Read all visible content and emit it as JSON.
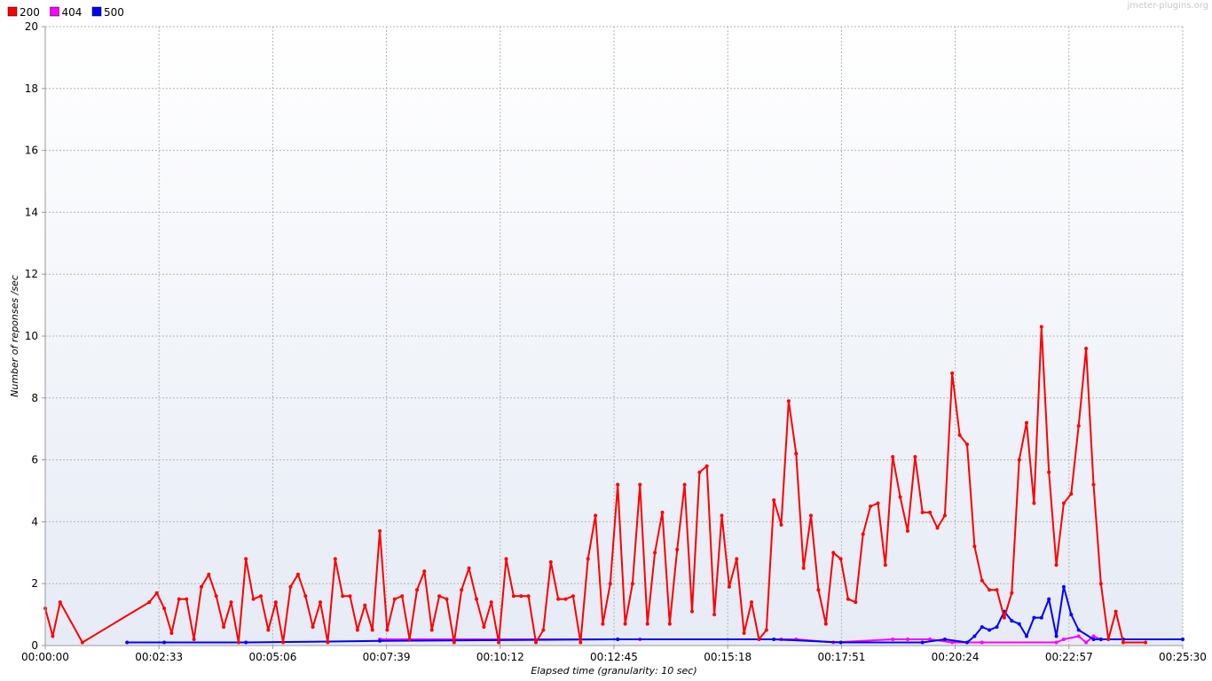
{
  "watermark": "jmeter-plugins.org",
  "chart_data": {
    "type": "line",
    "xlabel": "Elapsed time (granularity: 10 sec)",
    "ylabel": "Number of reponses /sec",
    "ylim": [
      0,
      20
    ],
    "xlim": [
      "00:00:00",
      "00:25:30"
    ],
    "x_tick_labels": [
      "00:00:00",
      "00:02:33",
      "00:05:06",
      "00:07:39",
      "00:10:12",
      "00:12:45",
      "00:15:18",
      "00:17:51",
      "00:20:24",
      "00:22:57",
      "00:25:30"
    ],
    "y_tick_labels": [
      "0",
      "2",
      "4",
      "6",
      "8",
      "10",
      "12",
      "14",
      "16",
      "18",
      "20"
    ],
    "grid": true,
    "legend_position": "top-left",
    "series": [
      {
        "name": "200",
        "color": "#ff0000",
        "points": [
          [
            "00:00:00",
            1.2
          ],
          [
            "00:00:10",
            0.3
          ],
          [
            "00:00:20",
            1.4
          ],
          [
            "00:00:50",
            0.1
          ],
          [
            "00:02:20",
            1.4
          ],
          [
            "00:02:30",
            1.7
          ],
          [
            "00:02:40",
            1.2
          ],
          [
            "00:02:50",
            0.4
          ],
          [
            "00:03:00",
            1.5
          ],
          [
            "00:03:10",
            1.5
          ],
          [
            "00:03:20",
            0.2
          ],
          [
            "00:03:30",
            1.9
          ],
          [
            "00:03:40",
            2.3
          ],
          [
            "00:03:50",
            1.6
          ],
          [
            "00:04:00",
            0.6
          ],
          [
            "00:04:10",
            1.4
          ],
          [
            "00:04:20",
            0.1
          ],
          [
            "00:04:30",
            2.8
          ],
          [
            "00:04:40",
            1.5
          ],
          [
            "00:04:50",
            1.6
          ],
          [
            "00:05:00",
            0.5
          ],
          [
            "00:05:10",
            1.4
          ],
          [
            "00:05:20",
            0.1
          ],
          [
            "00:05:30",
            1.9
          ],
          [
            "00:05:40",
            2.3
          ],
          [
            "00:05:50",
            1.6
          ],
          [
            "00:06:00",
            0.6
          ],
          [
            "00:06:10",
            1.4
          ],
          [
            "00:06:20",
            0.1
          ],
          [
            "00:06:30",
            2.8
          ],
          [
            "00:06:40",
            1.6
          ],
          [
            "00:06:50",
            1.6
          ],
          [
            "00:07:00",
            0.5
          ],
          [
            "00:07:10",
            1.3
          ],
          [
            "00:07:20",
            0.5
          ],
          [
            "00:07:30",
            3.7
          ],
          [
            "00:07:40",
            0.5
          ],
          [
            "00:07:50",
            1.5
          ],
          [
            "00:08:00",
            1.6
          ],
          [
            "00:08:10",
            0.2
          ],
          [
            "00:08:20",
            1.8
          ],
          [
            "00:08:30",
            2.4
          ],
          [
            "00:08:40",
            0.5
          ],
          [
            "00:08:50",
            1.6
          ],
          [
            "00:09:00",
            1.5
          ],
          [
            "00:09:10",
            0.1
          ],
          [
            "00:09:20",
            1.8
          ],
          [
            "00:09:30",
            2.5
          ],
          [
            "00:09:40",
            1.5
          ],
          [
            "00:09:50",
            0.6
          ],
          [
            "00:10:00",
            1.4
          ],
          [
            "00:10:10",
            0.1
          ],
          [
            "00:10:20",
            2.8
          ],
          [
            "00:10:30",
            1.6
          ],
          [
            "00:10:40",
            1.6
          ],
          [
            "00:10:50",
            1.6
          ],
          [
            "00:11:00",
            0.1
          ],
          [
            "00:11:10",
            0.5
          ],
          [
            "00:11:20",
            2.7
          ],
          [
            "00:11:30",
            1.5
          ],
          [
            "00:11:40",
            1.5
          ],
          [
            "00:11:50",
            1.6
          ],
          [
            "00:12:00",
            0.1
          ],
          [
            "00:12:10",
            2.8
          ],
          [
            "00:12:20",
            4.2
          ],
          [
            "00:12:30",
            0.7
          ],
          [
            "00:12:40",
            2.0
          ],
          [
            "00:12:50",
            5.2
          ],
          [
            "00:13:00",
            0.7
          ],
          [
            "00:13:10",
            2.0
          ],
          [
            "00:13:20",
            5.2
          ],
          [
            "00:13:30",
            0.7
          ],
          [
            "00:13:40",
            3.0
          ],
          [
            "00:13:50",
            4.3
          ],
          [
            "00:14:00",
            0.7
          ],
          [
            "00:14:10",
            3.1
          ],
          [
            "00:14:20",
            5.2
          ],
          [
            "00:14:30",
            1.1
          ],
          [
            "00:14:40",
            5.6
          ],
          [
            "00:14:50",
            5.8
          ],
          [
            "00:15:00",
            1.0
          ],
          [
            "00:15:10",
            4.2
          ],
          [
            "00:15:20",
            1.9
          ],
          [
            "00:15:30",
            2.8
          ],
          [
            "00:15:40",
            0.4
          ],
          [
            "00:15:50",
            1.4
          ],
          [
            "00:16:00",
            0.2
          ],
          [
            "00:16:10",
            0.5
          ],
          [
            "00:16:20",
            4.7
          ],
          [
            "00:16:30",
            3.9
          ],
          [
            "00:16:40",
            7.9
          ],
          [
            "00:16:50",
            6.2
          ],
          [
            "00:17:00",
            2.5
          ],
          [
            "00:17:10",
            4.2
          ],
          [
            "00:17:20",
            1.8
          ],
          [
            "00:17:30",
            0.7
          ],
          [
            "00:17:40",
            3.0
          ],
          [
            "00:17:50",
            2.8
          ],
          [
            "00:18:00",
            1.5
          ],
          [
            "00:18:10",
            1.4
          ],
          [
            "00:18:20",
            3.6
          ],
          [
            "00:18:30",
            4.5
          ],
          [
            "00:18:40",
            4.6
          ],
          [
            "00:18:50",
            2.6
          ],
          [
            "00:19:00",
            6.1
          ],
          [
            "00:19:10",
            4.8
          ],
          [
            "00:19:20",
            3.7
          ],
          [
            "00:19:30",
            6.1
          ],
          [
            "00:19:40",
            4.3
          ],
          [
            "00:19:50",
            4.3
          ],
          [
            "00:20:00",
            3.8
          ],
          [
            "00:20:10",
            4.2
          ],
          [
            "00:20:20",
            8.8
          ],
          [
            "00:20:30",
            6.8
          ],
          [
            "00:20:40",
            6.5
          ],
          [
            "00:20:50",
            3.2
          ],
          [
            "00:21:00",
            2.1
          ],
          [
            "00:21:10",
            1.8
          ],
          [
            "00:21:20",
            1.8
          ],
          [
            "00:21:30",
            0.9
          ],
          [
            "00:21:40",
            1.7
          ],
          [
            "00:21:50",
            6.0
          ],
          [
            "00:22:00",
            7.2
          ],
          [
            "00:22:10",
            4.6
          ],
          [
            "00:22:20",
            10.3
          ],
          [
            "00:22:30",
            5.6
          ],
          [
            "00:22:40",
            2.6
          ],
          [
            "00:22:50",
            4.6
          ],
          [
            "00:23:00",
            4.9
          ],
          [
            "00:23:10",
            7.1
          ],
          [
            "00:23:20",
            9.6
          ],
          [
            "00:23:30",
            5.2
          ],
          [
            "00:23:40",
            2.0
          ],
          [
            "00:23:50",
            0.2
          ],
          [
            "00:24:00",
            1.1
          ],
          [
            "00:24:10",
            0.1
          ],
          [
            "00:24:40",
            0.1
          ]
        ]
      },
      {
        "name": "404",
        "color": "#ff00ff",
        "points": [
          [
            "00:07:30",
            0.2
          ],
          [
            "00:12:50",
            0.2
          ],
          [
            "00:13:20",
            0.2
          ],
          [
            "00:16:30",
            0.2
          ],
          [
            "00:16:50",
            0.2
          ],
          [
            "00:17:40",
            0.1
          ],
          [
            "00:19:00",
            0.2
          ],
          [
            "00:19:20",
            0.2
          ],
          [
            "00:19:50",
            0.2
          ],
          [
            "00:20:20",
            0.1
          ],
          [
            "00:21:00",
            0.1
          ],
          [
            "00:22:40",
            0.1
          ],
          [
            "00:22:50",
            0.2
          ],
          [
            "00:23:10",
            0.3
          ],
          [
            "00:23:20",
            0.1
          ],
          [
            "00:23:30",
            0.3
          ],
          [
            "00:23:40",
            0.2
          ]
        ]
      },
      {
        "name": "500",
        "color": "#0000ff",
        "points": [
          [
            "00:01:50",
            0.1
          ],
          [
            "00:02:40",
            0.1
          ],
          [
            "00:04:30",
            0.1
          ],
          [
            "00:07:30",
            0.15
          ],
          [
            "00:12:50",
            0.2
          ],
          [
            "00:16:20",
            0.2
          ],
          [
            "00:17:50",
            0.1
          ],
          [
            "00:19:40",
            0.1
          ],
          [
            "00:20:10",
            0.2
          ],
          [
            "00:20:40",
            0.1
          ],
          [
            "00:20:50",
            0.3
          ],
          [
            "00:21:00",
            0.6
          ],
          [
            "00:21:10",
            0.5
          ],
          [
            "00:21:20",
            0.6
          ],
          [
            "00:21:30",
            1.1
          ],
          [
            "00:21:40",
            0.8
          ],
          [
            "00:21:50",
            0.7
          ],
          [
            "00:22:00",
            0.3
          ],
          [
            "00:22:10",
            0.9
          ],
          [
            "00:22:20",
            0.9
          ],
          [
            "00:22:30",
            1.5
          ],
          [
            "00:22:40",
            0.3
          ],
          [
            "00:22:50",
            1.9
          ],
          [
            "00:23:00",
            1.0
          ],
          [
            "00:23:10",
            0.5
          ],
          [
            "00:23:30",
            0.2
          ],
          [
            "00:23:40",
            0.2
          ],
          [
            "00:24:10",
            0.2
          ],
          [
            "00:25:30",
            0.2
          ]
        ]
      }
    ]
  }
}
